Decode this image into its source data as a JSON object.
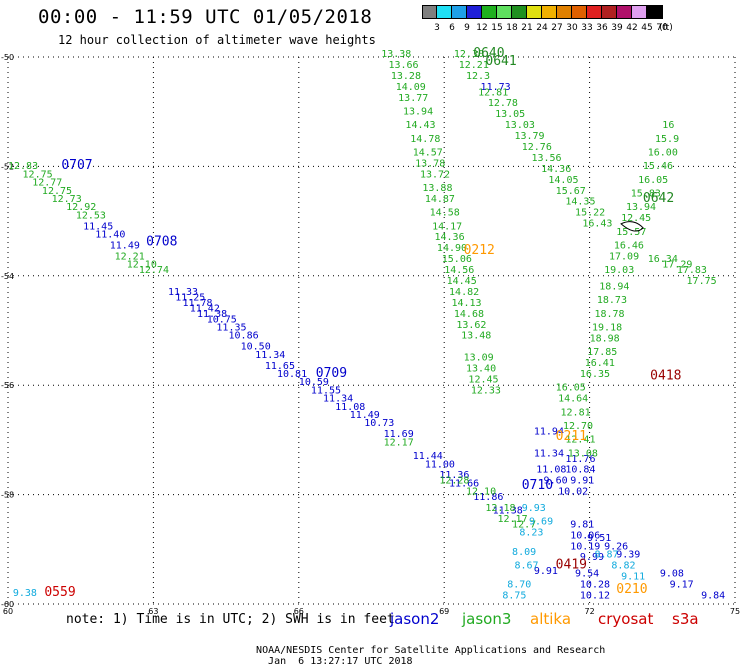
{
  "header": {
    "title": "00:00 - 11:59 UTC 01/05/2018",
    "subtitle": "12 hour collection of altimeter wave heights"
  },
  "colorbar": {
    "unit": "(ft)",
    "ticks": [
      "3",
      "6",
      "9",
      "12",
      "15",
      "18",
      "21",
      "24",
      "27",
      "30",
      "33",
      "36",
      "39",
      "42",
      "45",
      "70"
    ],
    "colors": [
      "#7f7f7f",
      "#1fe0f5",
      "#1fa0e8",
      "#1f1fd8",
      "#1fb01f",
      "#5fe05f",
      "#1f901f",
      "#e0e010",
      "#f0b000",
      "#e08000",
      "#e06000",
      "#e02020",
      "#b02020",
      "#b0106a",
      "#e0a0f0",
      "#000000"
    ]
  },
  "note": "note: 1) Time is in UTC; 2) SWH is in feet",
  "missions": [
    {
      "name": "jason2",
      "color": "#0000cc"
    },
    {
      "name": "jason3",
      "color": "#22aa22"
    },
    {
      "name": "altika",
      "color": "#ff9900"
    },
    {
      "name": "cryosat",
      "color": "#cc0000"
    },
    {
      "name": "s3a",
      "color": "#cc0000"
    }
  ],
  "footer": {
    "credit": "NOAA/NESDIS Center for Satellite Applications and Research",
    "timestamp": "Jan  6 13:27:17 UTC 2018"
  },
  "chart_data": {
    "type": "scatter",
    "title": "00:00 - 11:59 UTC 01/05/2018",
    "subtitle": "12 hour collection of altimeter wave heights",
    "xlabel": "",
    "ylabel": "",
    "xlim": [
      60,
      75
    ],
    "ylim": [
      -60,
      -50
    ],
    "xticks": [
      60,
      63,
      66,
      69,
      72,
      75
    ],
    "yticks": [
      -50,
      -52,
      -54,
      -56,
      -58,
      -60
    ],
    "ytick_labels": [
      "-50",
      "-52",
      "-54",
      "-56",
      "-58",
      "-60"
    ],
    "grid": true,
    "time_labels": [
      {
        "text": "0707",
        "lon": 61.1,
        "lat": -52.05,
        "color": "#0000cc"
      },
      {
        "text": "0708",
        "lon": 62.85,
        "lat": -53.45,
        "color": "#0000cc"
      },
      {
        "text": "0709",
        "lon": 66.35,
        "lat": -55.85,
        "color": "#0000cc"
      },
      {
        "text": "0710",
        "lon": 70.6,
        "lat": -57.9,
        "color": "#0000cc"
      },
      {
        "text": "0559",
        "lon": 60.75,
        "lat": -59.85,
        "color": "#cc0000"
      },
      {
        "text": "0640",
        "lon": 69.6,
        "lat": -50.0,
        "color": "#228822"
      },
      {
        "text": "0641",
        "lon": 69.85,
        "lat": -50.15,
        "color": "#228822"
      },
      {
        "text": "0642",
        "lon": 73.1,
        "lat": -52.65,
        "color": "#228822"
      },
      {
        "text": "0212",
        "lon": 69.4,
        "lat": -53.6,
        "color": "#ff9900"
      },
      {
        "text": "0211",
        "lon": 71.3,
        "lat": -57.0,
        "color": "#ff9900"
      },
      {
        "text": "0210",
        "lon": 72.55,
        "lat": -59.8,
        "color": "#ff9900"
      },
      {
        "text": "0418",
        "lon": 73.25,
        "lat": -55.9,
        "color": "#990000"
      },
      {
        "text": "0419",
        "lon": 71.3,
        "lat": -59.35,
        "color": "#990000"
      }
    ],
    "series": [
      {
        "name": "jason2",
        "color": "#0000cc",
        "points": [
          {
            "lon": 61.55,
            "lat": -53.15,
            "v": "11.45"
          },
          {
            "lon": 61.8,
            "lat": -53.3,
            "v": "11.40"
          },
          {
            "lon": 62.1,
            "lat": -53.5,
            "v": "11.49"
          },
          {
            "lon": 63.3,
            "lat": -54.35,
            "v": "11.33"
          },
          {
            "lon": 63.45,
            "lat": -54.45,
            "v": "11.25"
          },
          {
            "lon": 63.6,
            "lat": -54.55,
            "v": "11.78"
          },
          {
            "lon": 63.75,
            "lat": -54.65,
            "v": "11.42"
          },
          {
            "lon": 63.9,
            "lat": -54.75,
            "v": "11.38"
          },
          {
            "lon": 64.1,
            "lat": -54.85,
            "v": "10.75"
          },
          {
            "lon": 64.3,
            "lat": -55.0,
            "v": "11.35"
          },
          {
            "lon": 64.55,
            "lat": -55.15,
            "v": "10.86"
          },
          {
            "lon": 64.8,
            "lat": -55.35,
            "v": "10.50"
          },
          {
            "lon": 65.1,
            "lat": -55.5,
            "v": "11.34"
          },
          {
            "lon": 65.3,
            "lat": -55.7,
            "v": "11.65"
          },
          {
            "lon": 65.55,
            "lat": -55.85,
            "v": "10.81"
          },
          {
            "lon": 66.0,
            "lat": -56.0,
            "v": "10.59"
          },
          {
            "lon": 66.25,
            "lat": -56.15,
            "v": "11.55"
          },
          {
            "lon": 66.5,
            "lat": -56.3,
            "v": "11.34"
          },
          {
            "lon": 66.75,
            "lat": -56.45,
            "v": "11.08"
          },
          {
            "lon": 67.05,
            "lat": -56.6,
            "v": "11.49"
          },
          {
            "lon": 67.35,
            "lat": -56.75,
            "v": "10.73"
          },
          {
            "lon": 67.75,
            "lat": -56.95,
            "v": "11.69"
          },
          {
            "lon": 68.35,
            "lat": -57.35,
            "v": "11.44"
          },
          {
            "lon": 68.6,
            "lat": -57.5,
            "v": "11.00"
          },
          {
            "lon": 68.9,
            "lat": -57.7,
            "v": "11.36"
          },
          {
            "lon": 69.1,
            "lat": -57.85,
            "v": "11.66"
          },
          {
            "lon": 69.6,
            "lat": -58.1,
            "v": "11.86"
          },
          {
            "lon": 70.0,
            "lat": -58.35,
            "v": "11.38"
          },
          {
            "lon": 69.75,
            "lat": -50.6,
            "v": "11.73"
          },
          {
            "lon": 70.85,
            "lat": -56.9,
            "v": "11.94"
          },
          {
            "lon": 70.85,
            "lat": -57.3,
            "v": "11.34"
          },
          {
            "lon": 70.9,
            "lat": -57.6,
            "v": "11.08"
          },
          {
            "lon": 71.05,
            "lat": -57.8,
            "v": "9.60"
          },
          {
            "lon": 71.35,
            "lat": -58.0,
            "v": "10.02"
          },
          {
            "lon": 71.5,
            "lat": -57.4,
            "v": "11.76"
          },
          {
            "lon": 71.5,
            "lat": -57.6,
            "v": "10.84"
          },
          {
            "lon": 71.6,
            "lat": -57.8,
            "v": "9.91"
          },
          {
            "lon": 71.6,
            "lat": -58.6,
            "v": "9.81"
          },
          {
            "lon": 71.6,
            "lat": -58.8,
            "v": "10.06"
          },
          {
            "lon": 71.6,
            "lat": -59.0,
            "v": "10.19"
          },
          {
            "lon": 71.8,
            "lat": -59.2,
            "v": "9.99"
          },
          {
            "lon": 71.95,
            "lat": -58.85,
            "v": "9.51"
          },
          {
            "lon": 72.3,
            "lat": -59.0,
            "v": "9.26"
          },
          {
            "lon": 72.55,
            "lat": -59.15,
            "v": "9.39"
          },
          {
            "lon": 70.85,
            "lat": -59.45,
            "v": "9.91"
          },
          {
            "lon": 71.7,
            "lat": -59.5,
            "v": "9.54"
          },
          {
            "lon": 71.8,
            "lat": -59.7,
            "v": "10.28"
          },
          {
            "lon": 71.8,
            "lat": -59.9,
            "v": "10.12"
          },
          {
            "lon": 73.45,
            "lat": -59.5,
            "v": "9.08"
          },
          {
            "lon": 73.65,
            "lat": -59.7,
            "v": "9.17"
          },
          {
            "lon": 74.3,
            "lat": -59.9,
            "v": "9.84"
          }
        ]
      },
      {
        "name": "jason3",
        "color": "#22aa22",
        "points": [
          {
            "lon": 60.0,
            "lat": -52.05,
            "v": "12.83"
          },
          {
            "lon": 60.3,
            "lat": -52.2,
            "v": "12.75"
          },
          {
            "lon": 60.5,
            "lat": -52.35,
            "v": "12.77"
          },
          {
            "lon": 60.7,
            "lat": -52.5,
            "v": "12.75"
          },
          {
            "lon": 60.9,
            "lat": -52.65,
            "v": "12.73"
          },
          {
            "lon": 61.2,
            "lat": -52.8,
            "v": "12.92"
          },
          {
            "lon": 61.4,
            "lat": -52.95,
            "v": "12.53"
          },
          {
            "lon": 62.2,
            "lat": -53.7,
            "v": "12.21"
          },
          {
            "lon": 62.45,
            "lat": -53.85,
            "v": "12.10"
          },
          {
            "lon": 62.7,
            "lat": -53.95,
            "v": "12.74"
          },
          {
            "lon": 67.7,
            "lat": -50.0,
            "v": "13.38"
          },
          {
            "lon": 67.85,
            "lat": -50.2,
            "v": "13.66"
          },
          {
            "lon": 67.9,
            "lat": -50.4,
            "v": "13.28"
          },
          {
            "lon": 68.0,
            "lat": -50.6,
            "v": "14.09"
          },
          {
            "lon": 68.05,
            "lat": -50.8,
            "v": "13.77"
          },
          {
            "lon": 68.15,
            "lat": -51.05,
            "v": "13.94"
          },
          {
            "lon": 68.2,
            "lat": -51.3,
            "v": "14.43"
          },
          {
            "lon": 68.3,
            "lat": -51.55,
            "v": "14.78"
          },
          {
            "lon": 68.35,
            "lat": -51.8,
            "v": "14.57"
          },
          {
            "lon": 68.4,
            "lat": -52.0,
            "v": "13.78"
          },
          {
            "lon": 68.5,
            "lat": -52.2,
            "v": "13.72"
          },
          {
            "lon": 68.55,
            "lat": -52.45,
            "v": "13.88"
          },
          {
            "lon": 68.6,
            "lat": -52.65,
            "v": "14.87"
          },
          {
            "lon": 68.7,
            "lat": -52.9,
            "v": "14.58"
          },
          {
            "lon": 68.75,
            "lat": -53.15,
            "v": "14.17"
          },
          {
            "lon": 68.8,
            "lat": -53.35,
            "v": "14.36"
          },
          {
            "lon": 68.85,
            "lat": -53.55,
            "v": "14.90"
          },
          {
            "lon": 68.95,
            "lat": -53.75,
            "v": "15.06"
          },
          {
            "lon": 69.0,
            "lat": -53.95,
            "v": "14.56"
          },
          {
            "lon": 69.05,
            "lat": -54.15,
            "v": "14.45"
          },
          {
            "lon": 69.1,
            "lat": -54.35,
            "v": "14.82"
          },
          {
            "lon": 69.15,
            "lat": -54.55,
            "v": "14.13"
          },
          {
            "lon": 69.2,
            "lat": -54.75,
            "v": "14.68"
          },
          {
            "lon": 69.25,
            "lat": -54.95,
            "v": "13.62"
          },
          {
            "lon": 69.35,
            "lat": -55.15,
            "v": "13.48"
          },
          {
            "lon": 69.4,
            "lat": -55.55,
            "v": "13.09"
          },
          {
            "lon": 69.45,
            "lat": -55.75,
            "v": "13.40"
          },
          {
            "lon": 69.5,
            "lat": -55.95,
            "v": "12.45"
          },
          {
            "lon": 69.55,
            "lat": -56.15,
            "v": "12.33"
          },
          {
            "lon": 69.2,
            "lat": -50.0,
            "v": "12.30"
          },
          {
            "lon": 69.3,
            "lat": -50.2,
            "v": "12.21"
          },
          {
            "lon": 69.45,
            "lat": -50.4,
            "v": "12.3"
          },
          {
            "lon": 69.7,
            "lat": -50.7,
            "v": "12.81"
          },
          {
            "lon": 69.9,
            "lat": -50.9,
            "v": "12.78"
          },
          {
            "lon": 70.05,
            "lat": -51.1,
            "v": "13.05"
          },
          {
            "lon": 70.25,
            "lat": -51.3,
            "v": "13.03"
          },
          {
            "lon": 70.45,
            "lat": -51.5,
            "v": "13.79"
          },
          {
            "lon": 70.6,
            "lat": -51.7,
            "v": "12.76"
          },
          {
            "lon": 70.8,
            "lat": -51.9,
            "v": "13.56"
          },
          {
            "lon": 71.0,
            "lat": -52.1,
            "v": "14.36"
          },
          {
            "lon": 71.15,
            "lat": -52.3,
            "v": "14.05"
          },
          {
            "lon": 71.3,
            "lat": -52.5,
            "v": "15.67"
          },
          {
            "lon": 71.5,
            "lat": -52.7,
            "v": "14.35"
          },
          {
            "lon": 71.7,
            "lat": -52.9,
            "v": "15.22"
          },
          {
            "lon": 71.85,
            "lat": -53.1,
            "v": "16.43"
          },
          {
            "lon": 67.75,
            "lat": -57.1,
            "v": "12.17"
          },
          {
            "lon": 68.9,
            "lat": -57.8,
            "v": "12.28"
          },
          {
            "lon": 69.45,
            "lat": -58.0,
            "v": "12.10"
          },
          {
            "lon": 69.85,
            "lat": -58.3,
            "v": "12.18"
          },
          {
            "lon": 70.1,
            "lat": -58.5,
            "v": "12.17"
          },
          {
            "lon": 70.4,
            "lat": -58.6,
            "v": "12.7"
          },
          {
            "lon": 71.3,
            "lat": -56.1,
            "v": "16.05"
          },
          {
            "lon": 71.35,
            "lat": -56.3,
            "v": "14.64"
          },
          {
            "lon": 71.4,
            "lat": -56.55,
            "v": "12.81"
          },
          {
            "lon": 71.45,
            "lat": -56.8,
            "v": "12.70"
          },
          {
            "lon": 71.5,
            "lat": -57.05,
            "v": "12.41"
          },
          {
            "lon": 71.55,
            "lat": -57.3,
            "v": "13.08"
          },
          {
            "lon": 71.8,
            "lat": -55.85,
            "v": "16.35"
          },
          {
            "lon": 71.9,
            "lat": -55.65,
            "v": "16.41"
          },
          {
            "lon": 71.95,
            "lat": -55.45,
            "v": "17.85"
          },
          {
            "lon": 72.0,
            "lat": -55.2,
            "v": "18.98"
          },
          {
            "lon": 72.05,
            "lat": -55.0,
            "v": "19.18"
          },
          {
            "lon": 72.1,
            "lat": -54.75,
            "v": "18.78"
          },
          {
            "lon": 72.15,
            "lat": -54.5,
            "v": "18.73"
          },
          {
            "lon": 72.2,
            "lat": -54.25,
            "v": "18.94"
          },
          {
            "lon": 72.3,
            "lat": -53.95,
            "v": "19.03"
          },
          {
            "lon": 72.4,
            "lat": -53.7,
            "v": "17.09"
          },
          {
            "lon": 72.5,
            "lat": -53.5,
            "v": "16.46"
          },
          {
            "lon": 72.55,
            "lat": -53.25,
            "v": "15.57"
          },
          {
            "lon": 72.65,
            "lat": -53.0,
            "v": "12.45"
          },
          {
            "lon": 72.75,
            "lat": -52.8,
            "v": "13.94"
          },
          {
            "lon": 72.85,
            "lat": -52.55,
            "v": "15.83"
          },
          {
            "lon": 73.0,
            "lat": -52.3,
            "v": "16.05"
          },
          {
            "lon": 73.1,
            "lat": -52.05,
            "v": "15.46"
          },
          {
            "lon": 73.2,
            "lat": -51.8,
            "v": "16.00"
          },
          {
            "lon": 73.35,
            "lat": -51.55,
            "v": "15.9"
          },
          {
            "lon": 73.5,
            "lat": -51.3,
            "v": "16"
          },
          {
            "lon": 73.5,
            "lat": -53.85,
            "v": "17.29"
          },
          {
            "lon": 73.2,
            "lat": -53.75,
            "v": "16.34"
          },
          {
            "lon": 73.8,
            "lat": -53.95,
            "v": "17.83"
          },
          {
            "lon": 74.0,
            "lat": -54.15,
            "v": "17.75"
          }
        ]
      },
      {
        "name": "altika",
        "color": "#11aadd",
        "points": [
          {
            "lon": 70.6,
            "lat": -58.3,
            "v": "9.93"
          },
          {
            "lon": 70.75,
            "lat": -58.55,
            "v": "9.69"
          },
          {
            "lon": 70.55,
            "lat": -58.75,
            "v": "8.23"
          },
          {
            "lon": 70.4,
            "lat": -59.1,
            "v": "8.09"
          },
          {
            "lon": 70.45,
            "lat": -59.35,
            "v": "8.67"
          },
          {
            "lon": 70.3,
            "lat": -59.7,
            "v": "8.70"
          },
          {
            "lon": 70.2,
            "lat": -59.9,
            "v": "8.75"
          },
          {
            "lon": 72.1,
            "lat": -59.15,
            "v": "8.87"
          },
          {
            "lon": 72.45,
            "lat": -59.35,
            "v": "8.82"
          },
          {
            "lon": 72.65,
            "lat": -59.55,
            "v": "9.11"
          },
          {
            "lon": 60.1,
            "lat": -59.85,
            "v": "9.38"
          }
        ]
      }
    ]
  }
}
